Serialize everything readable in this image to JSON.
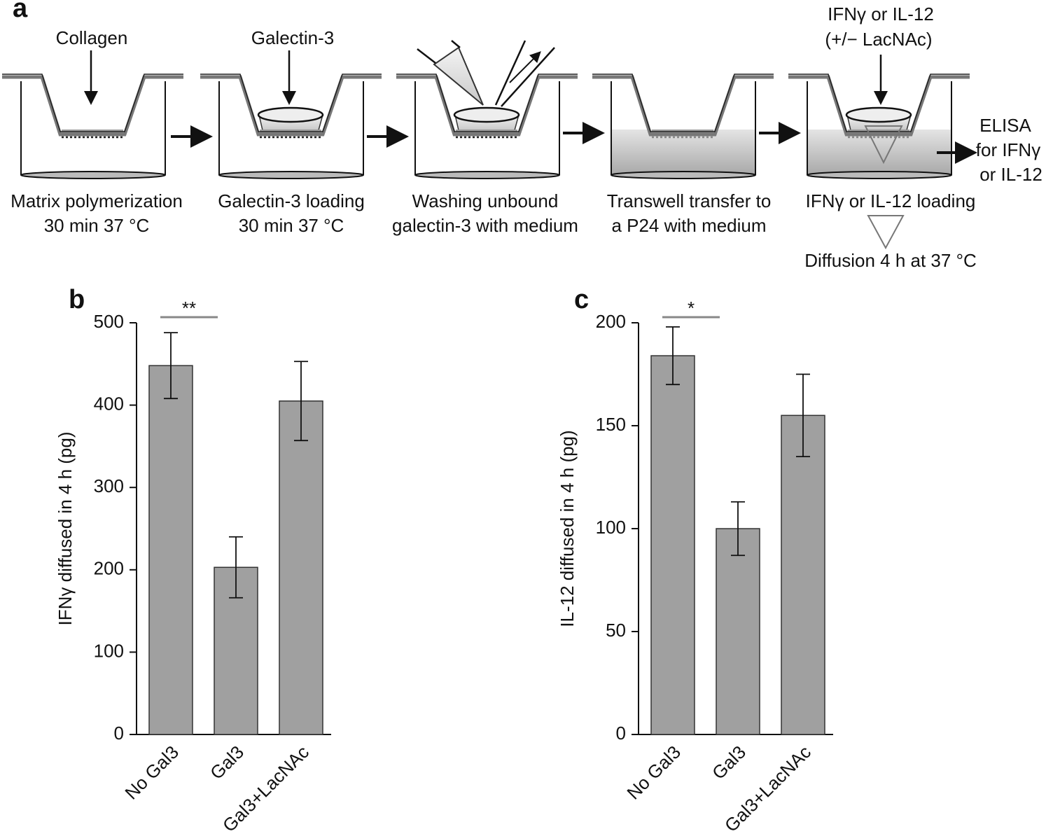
{
  "diagram": {
    "panel": "a",
    "inputs": [
      "Collagen",
      "Galectin-3",
      "IFNγ or IL-12",
      "(+/− LacNAc)"
    ],
    "captions": [
      [
        "Matrix polymerization",
        "30 min 37 °C"
      ],
      [
        "Galectin-3 loading",
        "30 min 37 °C"
      ],
      [
        "Washing unbound",
        "galectin-3 with medium"
      ],
      [
        "Transwell transfer to",
        "a P24 with medium"
      ],
      [
        "IFNγ or IL-12 loading"
      ]
    ],
    "readout": [
      "ELISA",
      "for IFNγ",
      "or IL-12"
    ],
    "diffusion": "Diffusion 4 h at 37 °C"
  },
  "chart_data": [
    {
      "type": "bar",
      "panel": "b",
      "ylabel": "IFNγ diffused in 4 h (pg)",
      "categories": [
        "No Gal3",
        "Gal3",
        "Gal3+LacNAc"
      ],
      "values": [
        448,
        203,
        405
      ],
      "errors": [
        40,
        37,
        48
      ],
      "color": "#a0a0a0",
      "ylim": [
        0,
        500
      ],
      "yticks": [
        0,
        100,
        200,
        300,
        400,
        500
      ],
      "significance": "**"
    },
    {
      "type": "bar",
      "panel": "c",
      "ylabel": "IL-12 diffused in 4 h (pg)",
      "categories": [
        "No Gal3",
        "Gal3",
        "Gal3+LacNAc"
      ],
      "values": [
        184,
        100,
        155
      ],
      "errors": [
        14,
        13,
        20
      ],
      "color": "#a0a0a0",
      "ylim": [
        0,
        200
      ],
      "yticks": [
        0,
        50,
        100,
        150,
        200
      ],
      "significance": "*"
    }
  ]
}
